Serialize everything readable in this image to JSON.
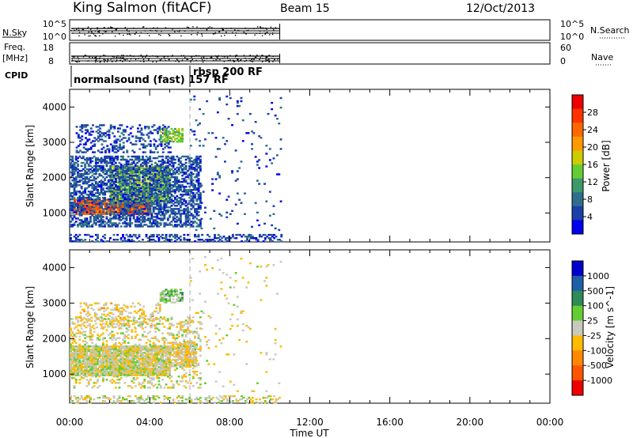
{
  "header": {
    "station": "King Salmon (fitACF)",
    "beam": "Beam 15",
    "date": "12/Oct/2013"
  },
  "top_panels": {
    "nsky_label": "N.Sky",
    "nsky_ticks": [
      "10^5",
      "10^0"
    ],
    "nsearch_label": "N.Search",
    "nsearch_ticks": [
      "10^5",
      "10^0"
    ],
    "freq_label_1": "Freq.",
    "freq_label_2": "[MHz]",
    "freq_ticks": [
      "18",
      "8"
    ],
    "nave_label": "Nave",
    "nave_ticks": [
      "60",
      "0"
    ],
    "cpid_label": "CPID",
    "cpid_segments": [
      {
        "text": "normalsound (fast) 157 RF",
        "start_hour": 0.0
      },
      {
        "text": "rbsp 200 RF",
        "start_hour": 6.0
      }
    ],
    "data_end_hour": 10.5
  },
  "chart_data": [
    {
      "type": "heatmap",
      "panel": "power",
      "title": "",
      "xlabel": "Time UT",
      "ylabel": "Slant Range [km]",
      "x_ticks": [
        "00:00",
        "04:00",
        "08:00",
        "12:00",
        "16:00",
        "20:00",
        "00:00"
      ],
      "xlim_hours": [
        0,
        24
      ],
      "y_ticks": [
        1000,
        2000,
        3000,
        4000
      ],
      "ylim_km": [
        180,
        4500
      ],
      "colorbar_label": "Power [dB]",
      "colorbar_ticks": [
        "28",
        "24",
        "20",
        "16",
        "12",
        "8",
        "4"
      ],
      "colorbar_range": [
        0,
        32
      ],
      "colors": [
        "#0000ee",
        "#1a3fa8",
        "#2e6e8c",
        "#3c9a6a",
        "#66cc33",
        "#cccc00",
        "#ff9900",
        "#ff6600",
        "#ff3300",
        "#ee0000"
      ],
      "regions": [
        {
          "t": [
            0.2,
            4.0
          ],
          "r": [
            950,
            1400
          ],
          "value": 25,
          "density": 0.95
        },
        {
          "t": [
            2.0,
            5.0
          ],
          "r": [
            1300,
            2300
          ],
          "value": 15,
          "density": 0.75
        },
        {
          "t": [
            0.0,
            6.5
          ],
          "r": [
            600,
            2600
          ],
          "value": 6,
          "density": 0.55
        },
        {
          "t": [
            0.3,
            5.0
          ],
          "r": [
            2700,
            3500
          ],
          "value": 5,
          "density": 0.3
        },
        {
          "t": [
            4.5,
            5.6
          ],
          "r": [
            3000,
            3400
          ],
          "value": 14,
          "density": 0.6
        },
        {
          "t": [
            0.0,
            10.6
          ],
          "r": [
            180,
            400
          ],
          "value": 5,
          "density": 0.35
        },
        {
          "t": [
            6.0,
            10.5
          ],
          "r": [
            500,
            4300
          ],
          "value": 5,
          "density": 0.025
        }
      ]
    },
    {
      "type": "heatmap",
      "panel": "velocity",
      "title": "",
      "xlabel": "Time UT",
      "ylabel": "Slant Range [km]",
      "x_ticks": [
        "00:00",
        "04:00",
        "08:00",
        "12:00",
        "16:00",
        "20:00",
        "00:00"
      ],
      "xlim_hours": [
        0,
        24
      ],
      "y_ticks": [
        1000,
        2000,
        3000,
        4000
      ],
      "ylim_km": [
        180,
        4500
      ],
      "colorbar_label": "Velocity [m s^-1]",
      "colorbar_ticks": [
        "1000",
        "500",
        "100",
        "25",
        "-25",
        "-100",
        "-500",
        "-1000"
      ],
      "colorbar_range": [
        -1200,
        1200
      ],
      "colors": [
        "#0000cc",
        "#1f5fa8",
        "#2e8b57",
        "#66cc33",
        "#c8c8bc",
        "#ffbb00",
        "#ff8800",
        "#ff5500",
        "#ee0000"
      ],
      "regions": [
        {
          "t": [
            0.0,
            5.0
          ],
          "r": [
            950,
            1800
          ],
          "value": 0,
          "density": 0.9
        },
        {
          "t": [
            5.0,
            6.3
          ],
          "r": [
            1200,
            1900
          ],
          "value": -150,
          "density": 0.7
        },
        {
          "t": [
            4.5,
            5.6
          ],
          "r": [
            3000,
            3400
          ],
          "value": 200,
          "density": 0.6
        },
        {
          "t": [
            0.5,
            4.5
          ],
          "r": [
            2300,
            3000
          ],
          "value": -150,
          "density": 0.25
        },
        {
          "t": [
            0.0,
            6.5
          ],
          "r": [
            600,
            2600
          ],
          "value": -60,
          "density": 0.25
        },
        {
          "t": [
            0.0,
            10.6
          ],
          "r": [
            180,
            400
          ],
          "value": 0,
          "density": 0.3
        },
        {
          "t": [
            6.0,
            10.5
          ],
          "r": [
            500,
            4300
          ],
          "value": -100,
          "density": 0.025
        }
      ]
    }
  ]
}
